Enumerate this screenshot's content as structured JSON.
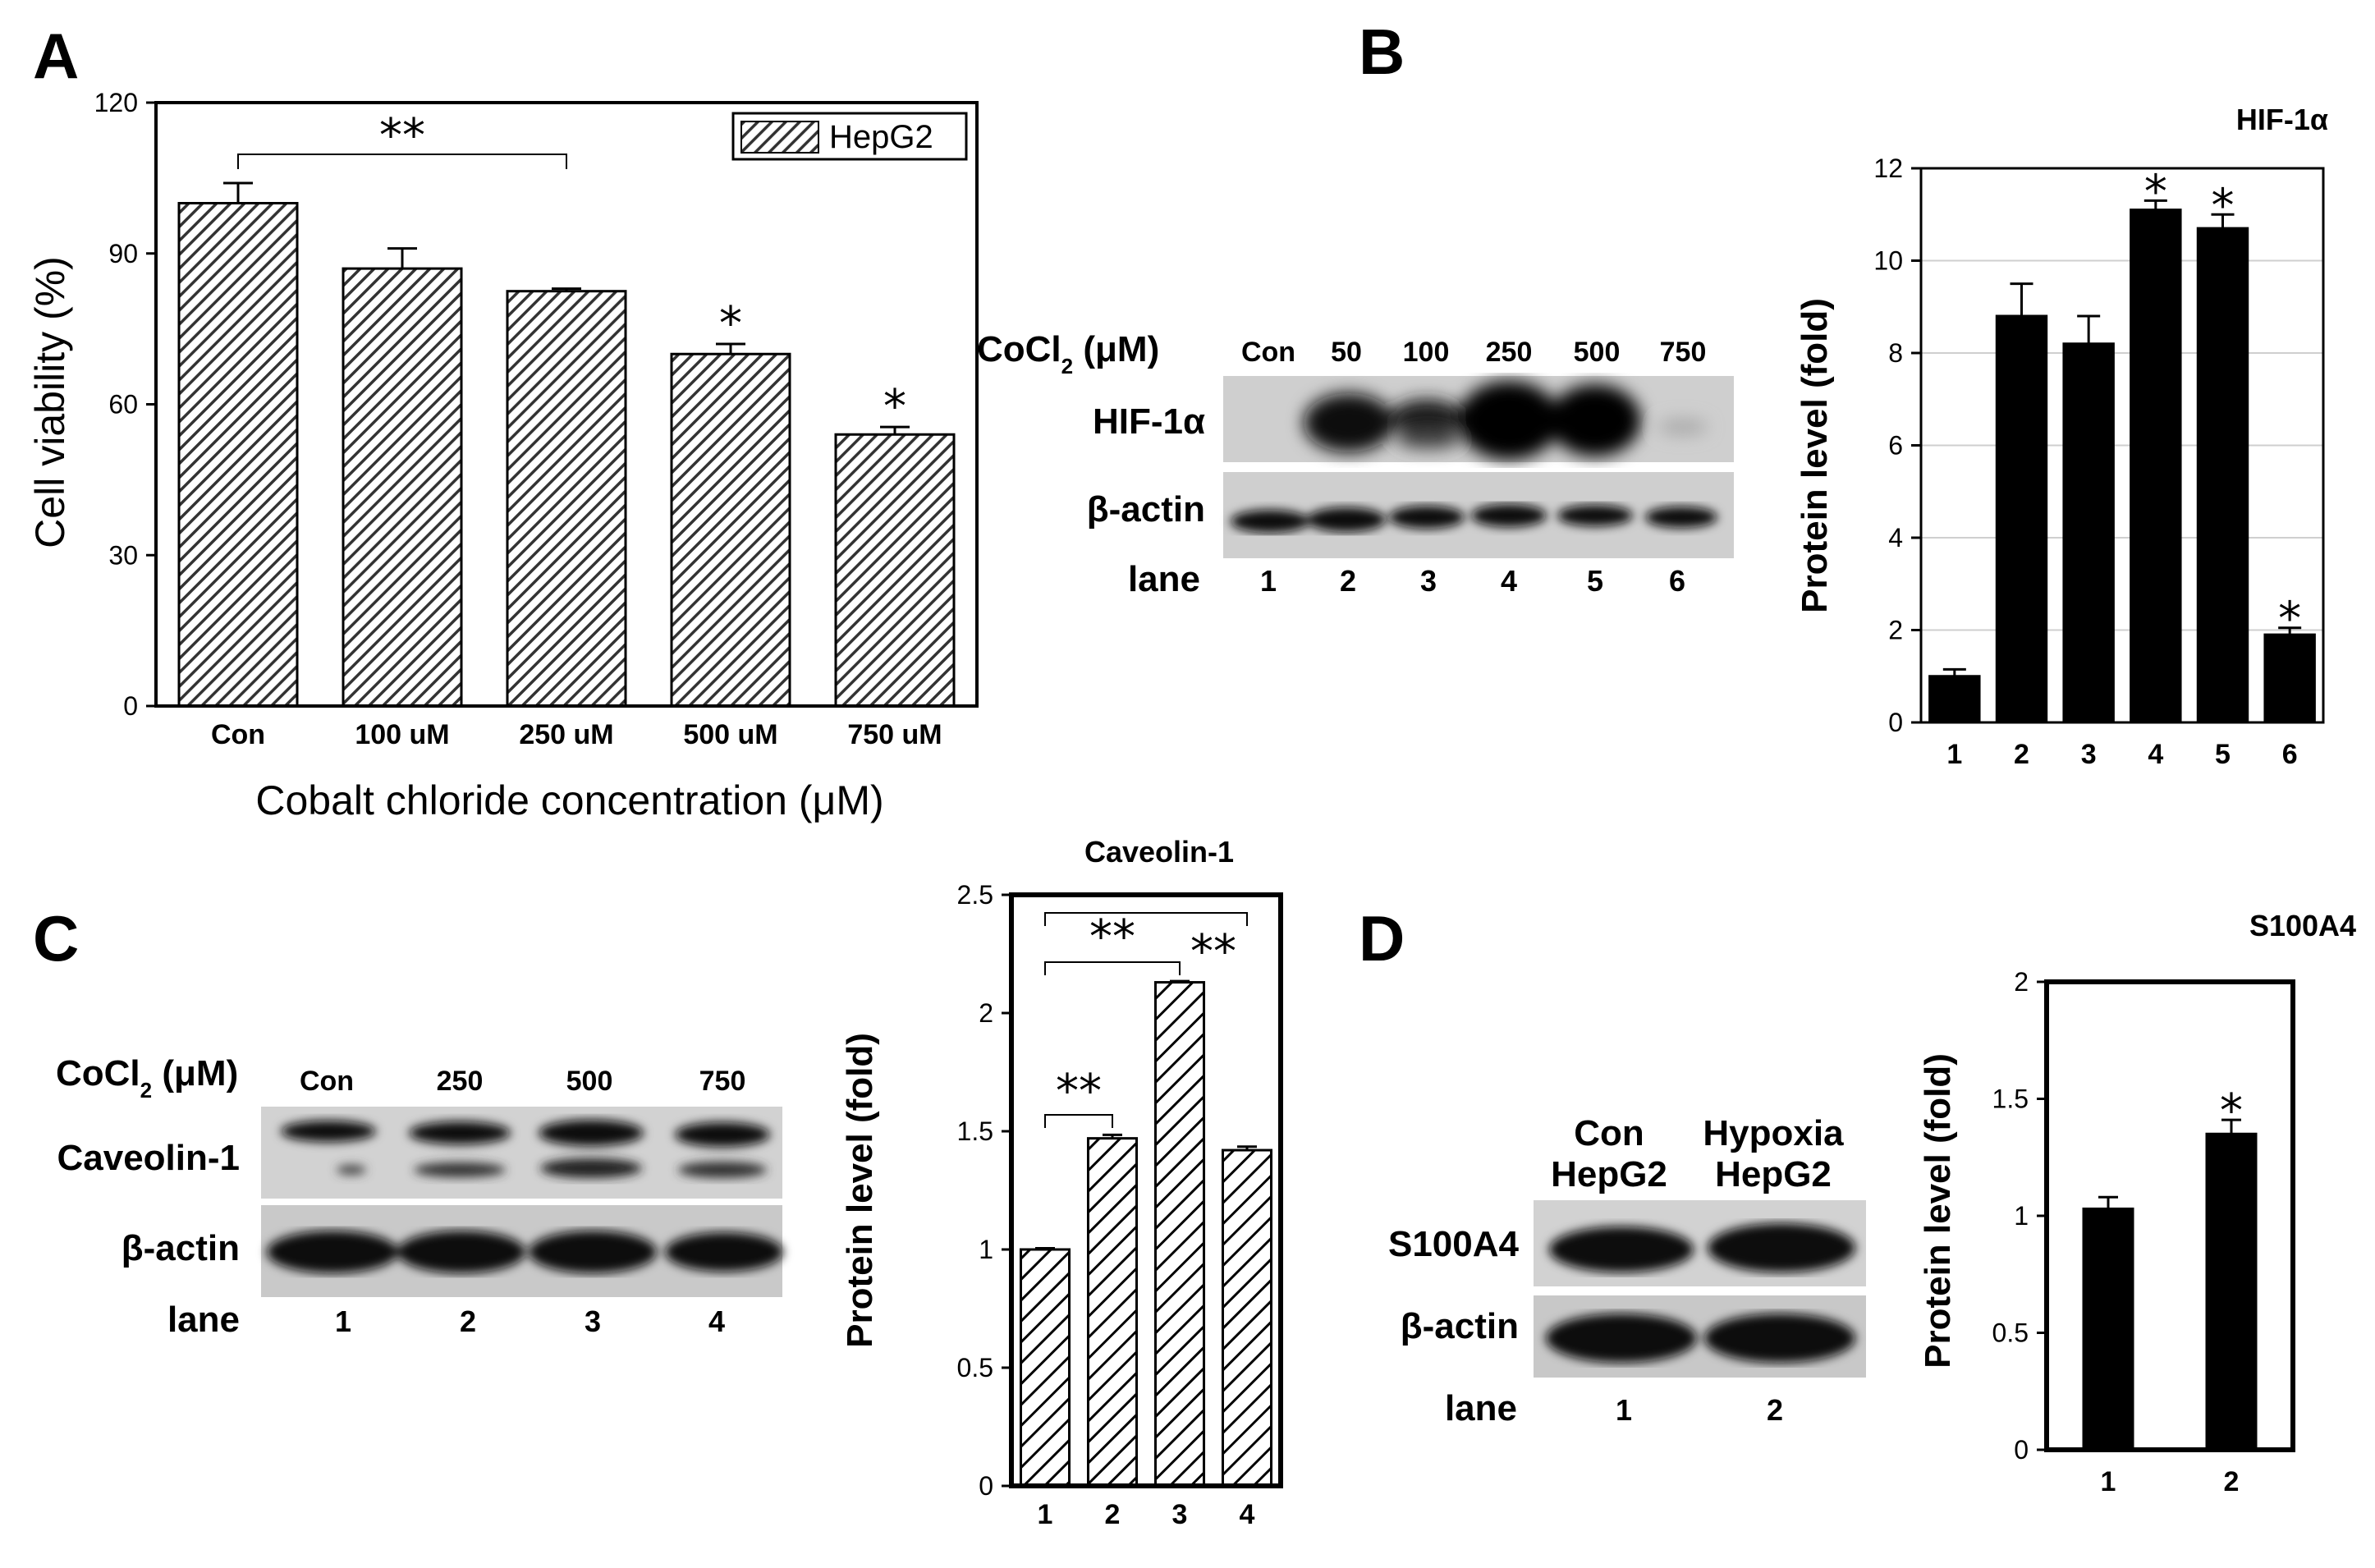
{
  "panels": {
    "a": "A",
    "b": "B",
    "c": "C",
    "d": "D"
  },
  "chart_data": [
    {
      "id": "A",
      "type": "bar",
      "categories": [
        "Con",
        "100 uM",
        "250 uM",
        "500 uM",
        "750 uM"
      ],
      "values": [
        100,
        87,
        82.5,
        70,
        54
      ],
      "errors": [
        4,
        4,
        0.5,
        2,
        1.5
      ],
      "xlabel": "Cobalt chloride concentration (μM)",
      "ylabel": "Cell viability (%)",
      "ylim": [
        0,
        120
      ],
      "yticks": [
        "0",
        "30",
        "60",
        "90",
        "120"
      ],
      "legend": "HepG2",
      "legend_position": "top-right",
      "significance": {
        "bracket": "**",
        "stars": [
          "",
          "",
          "",
          "*",
          "*"
        ]
      },
      "bar_fill": "hatched"
    },
    {
      "id": "B",
      "type": "bar",
      "title": "HIF-1α",
      "categories": [
        "1",
        "2",
        "3",
        "4",
        "5",
        "6"
      ],
      "values": [
        1.0,
        8.8,
        8.2,
        11.1,
        10.7,
        1.9
      ],
      "errors": [
        0.15,
        0.7,
        0.6,
        0.2,
        0.3,
        0.15
      ],
      "ylabel": "Protein level (fold)",
      "ylim": [
        0,
        12
      ],
      "yticks": [
        "0",
        "2",
        "4",
        "6",
        "8",
        "10",
        "12"
      ],
      "grid": true,
      "significance": {
        "stars": [
          "",
          "",
          "",
          "*",
          "*",
          "*"
        ]
      },
      "bar_color": "#000000"
    },
    {
      "id": "C",
      "type": "bar",
      "title": "Caveolin-1",
      "categories": [
        "1",
        "2",
        "3",
        "4"
      ],
      "values": [
        1.0,
        1.47,
        2.13,
        1.42
      ],
      "errors": [
        0.005,
        0.015,
        0.005,
        0.015
      ],
      "ylabel": "Protein level (fold)",
      "ylim": [
        0,
        2.5
      ],
      "yticks": [
        "0",
        "0.5",
        "1",
        "1.5",
        "2",
        "2.5"
      ],
      "significance": {
        "brackets": [
          "**",
          "**",
          "**"
        ]
      },
      "bar_fill": "hatched"
    },
    {
      "id": "D",
      "type": "bar",
      "title": "S100A4",
      "categories": [
        "1",
        "2"
      ],
      "values": [
        1.03,
        1.35
      ],
      "errors": [
        0.05,
        0.06
      ],
      "ylabel": "Protein level (fold)",
      "ylim": [
        0,
        2
      ],
      "yticks": [
        "0",
        "0.5",
        "1",
        "1.5",
        "2"
      ],
      "significance": {
        "stars": [
          "",
          "*"
        ]
      },
      "bar_color": "#000000"
    }
  ],
  "blots": {
    "B": {
      "treatment_label": "CoCl",
      "treatment_sub": "2",
      "treatment_unit": " (μM)",
      "columns": [
        "Con",
        "50",
        "100",
        "250",
        "500",
        "750"
      ],
      "rows": [
        "HIF-1α",
        "β-actin"
      ],
      "lane_label": "lane",
      "lanes": [
        "1",
        "2",
        "3",
        "4",
        "5",
        "6"
      ]
    },
    "C": {
      "treatment_label": "CoCl",
      "treatment_sub": "2",
      "treatment_unit": " (μM)",
      "columns": [
        "Con",
        "250",
        "500",
        "750"
      ],
      "rows": [
        "Caveolin-1",
        "β-actin"
      ],
      "lane_label": "lane",
      "lanes": [
        "1",
        "2",
        "3",
        "4"
      ]
    },
    "D": {
      "columns_line1": [
        "Con",
        "Hypoxia"
      ],
      "columns_line2": [
        "HepG2",
        "HepG2"
      ],
      "rows": [
        "S100A4",
        "β-actin"
      ],
      "lane_label": "lane",
      "lanes": [
        "1",
        "2"
      ]
    }
  }
}
